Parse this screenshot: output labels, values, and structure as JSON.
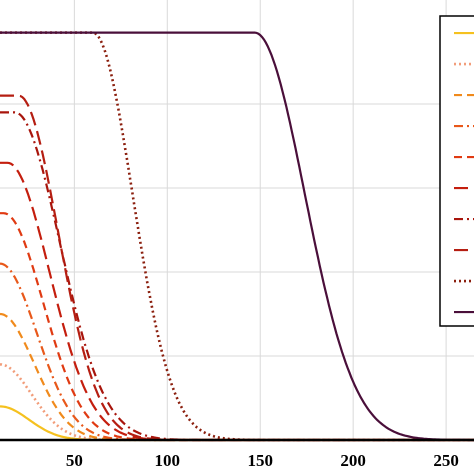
{
  "chart_data": {
    "type": "line",
    "title": "",
    "xlabel": "",
    "ylabel": "",
    "xlim": [
      10,
      265
    ],
    "ylim": [
      0,
      1.0
    ],
    "grid": true,
    "legend_placement": "top-right",
    "x_ticks": [
      {
        "value": 50,
        "label": "50"
      },
      {
        "value": 100,
        "label": "100"
      },
      {
        "value": 150,
        "label": "150"
      },
      {
        "value": 200,
        "label": "200"
      },
      {
        "value": 250,
        "label": "250"
      }
    ],
    "series": [
      {
        "color": "#f5c11f",
        "dash": "solid",
        "plateau": 0.08,
        "x0": 10,
        "tau": 22
      },
      {
        "color": "#f29d7a",
        "dash": "dot",
        "plateau": 0.18,
        "x0": 10,
        "tau": 24
      },
      {
        "color": "#f08a1c",
        "dash": "dash",
        "plateau": 0.3,
        "x0": 10,
        "tau": 26
      },
      {
        "color": "#e8581a",
        "dash": "dashdot",
        "plateau": 0.42,
        "x0": 10,
        "tau": 28
      },
      {
        "color": "#e03a12",
        "dash": "dash",
        "plateau": 0.54,
        "x0": 12,
        "tau": 30
      },
      {
        "color": "#c41e0e",
        "dash": "longdash",
        "plateau": 0.66,
        "x0": 14,
        "tau": 32
      },
      {
        "color": "#a8150c",
        "dash": "dashdot",
        "plateau": 0.78,
        "x0": 18,
        "tau": 34
      },
      {
        "color": "#b51e12",
        "dash": "longdash",
        "plateau": 0.82,
        "x0": 20,
        "tau": 30
      },
      {
        "color": "#8b1f0e",
        "dash": "dot",
        "plateau": 0.97,
        "x0": 60,
        "tau": 30
      },
      {
        "color": "#4a0f3a",
        "dash": "solid",
        "plateau": 0.97,
        "x0": 147,
        "tau": 38
      }
    ]
  }
}
